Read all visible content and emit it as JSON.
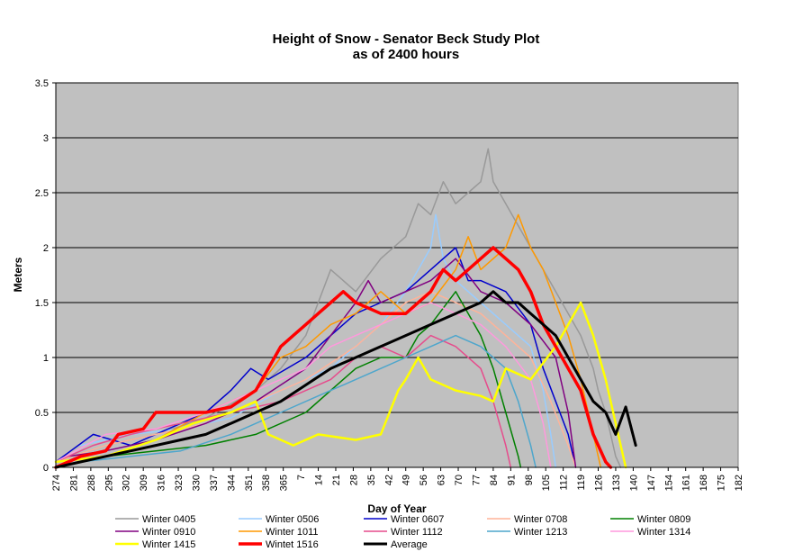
{
  "chart_data": {
    "type": "line",
    "title": "Height of Snow - Senator Beck Study Plot",
    "subtitle": "as of 2400 hours",
    "xlabel": "Day of Year",
    "ylabel": "Meters",
    "ylim": [
      0,
      3.5
    ],
    "yticks": [
      "0",
      "0.5",
      "1",
      "1.5",
      "2",
      "2.5",
      "3",
      "3.5"
    ],
    "xticks": [
      "274",
      "281",
      "288",
      "295",
      "302",
      "309",
      "316",
      "323",
      "330",
      "337",
      "344",
      "351",
      "358",
      "365",
      "7",
      "14",
      "21",
      "28",
      "35",
      "42",
      "49",
      "56",
      "63",
      "70",
      "77",
      "84",
      "91",
      "98",
      "105",
      "112",
      "119",
      "126",
      "133",
      "140",
      "147",
      "154",
      "161",
      "168",
      "175",
      "182"
    ],
    "grid": true,
    "legend_position": "bottom",
    "x_note": "x = season day index, 0 = day 274",
    "series": [
      {
        "name": "Winter 0405",
        "color": "#999999",
        "width": 1.5,
        "points": [
          [
            0,
            0.05
          ],
          [
            20,
            0.2
          ],
          [
            40,
            0.3
          ],
          [
            60,
            0.45
          ],
          [
            80,
            0.7
          ],
          [
            90,
            0.9
          ],
          [
            100,
            1.2
          ],
          [
            105,
            1.5
          ],
          [
            110,
            1.8
          ],
          [
            115,
            1.7
          ],
          [
            120,
            1.6
          ],
          [
            130,
            1.9
          ],
          [
            140,
            2.1
          ],
          [
            145,
            2.4
          ],
          [
            150,
            2.3
          ],
          [
            155,
            2.6
          ],
          [
            160,
            2.4
          ],
          [
            165,
            2.5
          ],
          [
            170,
            2.6
          ],
          [
            173,
            2.9
          ],
          [
            175,
            2.6
          ],
          [
            180,
            2.4
          ],
          [
            185,
            2.2
          ],
          [
            190,
            2.0
          ],
          [
            195,
            1.8
          ],
          [
            200,
            1.6
          ],
          [
            205,
            1.4
          ],
          [
            210,
            1.2
          ],
          [
            215,
            0.9
          ],
          [
            217,
            0.7
          ],
          [
            220,
            0.5
          ],
          [
            224,
            0.1
          ],
          [
            226,
            0
          ]
        ]
      },
      {
        "name": "Winter 0506",
        "color": "#99ccff",
        "width": 1.5,
        "points": [
          [
            10,
            0.2
          ],
          [
            30,
            0.3
          ],
          [
            50,
            0.35
          ],
          [
            70,
            0.45
          ],
          [
            90,
            0.7
          ],
          [
            110,
            0.9
          ],
          [
            120,
            1.1
          ],
          [
            130,
            1.3
          ],
          [
            140,
            1.6
          ],
          [
            145,
            1.8
          ],
          [
            150,
            2.0
          ],
          [
            152,
            2.3
          ],
          [
            155,
            1.9
          ],
          [
            160,
            1.7
          ],
          [
            170,
            1.5
          ],
          [
            180,
            1.3
          ],
          [
            190,
            1.1
          ],
          [
            195,
            0.7
          ],
          [
            198,
            0.3
          ],
          [
            200,
            0
          ]
        ]
      },
      {
        "name": "Winter 0607",
        "color": "#0000cc",
        "width": 1.5,
        "points": [
          [
            0,
            0.05
          ],
          [
            15,
            0.3
          ],
          [
            30,
            0.2
          ],
          [
            50,
            0.4
          ],
          [
            60,
            0.5
          ],
          [
            70,
            0.7
          ],
          [
            78,
            0.9
          ],
          [
            85,
            0.8
          ],
          [
            100,
            1.0
          ],
          [
            110,
            1.2
          ],
          [
            120,
            1.4
          ],
          [
            130,
            1.5
          ],
          [
            140,
            1.6
          ],
          [
            150,
            1.8
          ],
          [
            160,
            2.0
          ],
          [
            165,
            1.7
          ],
          [
            170,
            1.7
          ],
          [
            180,
            1.6
          ],
          [
            190,
            1.3
          ],
          [
            195,
            0.9
          ],
          [
            200,
            0.6
          ],
          [
            205,
            0.3
          ],
          [
            208,
            0
          ]
        ]
      },
      {
        "name": "Winter 0708",
        "color": "#ffb399",
        "width": 1.5,
        "points": [
          [
            0,
            0.05
          ],
          [
            20,
            0.2
          ],
          [
            40,
            0.3
          ],
          [
            60,
            0.4
          ],
          [
            80,
            0.6
          ],
          [
            100,
            0.8
          ],
          [
            120,
            1.1
          ],
          [
            130,
            1.3
          ],
          [
            140,
            1.5
          ],
          [
            150,
            1.6
          ],
          [
            160,
            1.5
          ],
          [
            170,
            1.4
          ],
          [
            180,
            1.2
          ],
          [
            190,
            1.0
          ],
          [
            198,
            0.6
          ],
          [
            205,
            0.2
          ],
          [
            208,
            0
          ]
        ]
      },
      {
        "name": "Winter 0809",
        "color": "#008000",
        "width": 1.5,
        "points": [
          [
            20,
            0.1
          ],
          [
            40,
            0.15
          ],
          [
            60,
            0.2
          ],
          [
            80,
            0.3
          ],
          [
            100,
            0.5
          ],
          [
            110,
            0.7
          ],
          [
            120,
            0.9
          ],
          [
            130,
            1.0
          ],
          [
            140,
            1.0
          ],
          [
            145,
            1.2
          ],
          [
            150,
            1.3
          ],
          [
            160,
            1.6
          ],
          [
            170,
            1.2
          ],
          [
            175,
            0.9
          ],
          [
            180,
            0.5
          ],
          [
            185,
            0.1
          ],
          [
            186,
            0
          ]
        ]
      },
      {
        "name": "Winter 0910",
        "color": "#800080",
        "width": 1.5,
        "points": [
          [
            5,
            0.1
          ],
          [
            20,
            0.15
          ],
          [
            40,
            0.25
          ],
          [
            60,
            0.4
          ],
          [
            80,
            0.6
          ],
          [
            100,
            0.9
          ],
          [
            110,
            1.2
          ],
          [
            120,
            1.5
          ],
          [
            125,
            1.7
          ],
          [
            130,
            1.5
          ],
          [
            140,
            1.6
          ],
          [
            150,
            1.7
          ],
          [
            160,
            1.9
          ],
          [
            170,
            1.6
          ],
          [
            180,
            1.5
          ],
          [
            190,
            1.3
          ],
          [
            200,
            1.0
          ],
          [
            205,
            0.5
          ],
          [
            208,
            0
          ]
        ]
      },
      {
        "name": "Winter 1011",
        "color": "#ff9900",
        "width": 1.5,
        "points": [
          [
            0,
            0.05
          ],
          [
            20,
            0.1
          ],
          [
            40,
            0.25
          ],
          [
            60,
            0.5
          ],
          [
            80,
            0.7
          ],
          [
            90,
            1.0
          ],
          [
            100,
            1.1
          ],
          [
            110,
            1.3
          ],
          [
            120,
            1.4
          ],
          [
            130,
            1.6
          ],
          [
            140,
            1.4
          ],
          [
            150,
            1.5
          ],
          [
            160,
            1.8
          ],
          [
            165,
            2.1
          ],
          [
            170,
            1.8
          ],
          [
            180,
            2.0
          ],
          [
            185,
            2.3
          ],
          [
            190,
            2.0
          ],
          [
            195,
            1.8
          ],
          [
            200,
            1.5
          ],
          [
            205,
            1.2
          ],
          [
            210,
            0.8
          ],
          [
            215,
            0.3
          ],
          [
            218,
            0
          ]
        ]
      },
      {
        "name": "Winter 1112",
        "color": "#e64c8c",
        "width": 1.5,
        "points": [
          [
            0,
            0.05
          ],
          [
            15,
            0.2
          ],
          [
            30,
            0.3
          ],
          [
            50,
            0.4
          ],
          [
            70,
            0.5
          ],
          [
            90,
            0.6
          ],
          [
            110,
            0.8
          ],
          [
            120,
            1.0
          ],
          [
            130,
            1.1
          ],
          [
            140,
            1.0
          ],
          [
            150,
            1.2
          ],
          [
            160,
            1.1
          ],
          [
            170,
            0.9
          ],
          [
            175,
            0.6
          ],
          [
            180,
            0.2
          ],
          [
            182,
            0
          ]
        ]
      },
      {
        "name": "Winter 1213",
        "color": "#4da6cc",
        "width": 1.5,
        "points": [
          [
            10,
            0.05
          ],
          [
            30,
            0.1
          ],
          [
            50,
            0.15
          ],
          [
            70,
            0.3
          ],
          [
            90,
            0.5
          ],
          [
            110,
            0.7
          ],
          [
            130,
            0.9
          ],
          [
            140,
            1.0
          ],
          [
            150,
            1.1
          ],
          [
            160,
            1.2
          ],
          [
            170,
            1.1
          ],
          [
            180,
            0.9
          ],
          [
            185,
            0.6
          ],
          [
            190,
            0.2
          ],
          [
            192,
            0
          ]
        ]
      },
      {
        "name": "Winter 1314",
        "color": "#ff99dd",
        "width": 1.5,
        "points": [
          [
            0,
            0.05
          ],
          [
            20,
            0.3
          ],
          [
            40,
            0.35
          ],
          [
            60,
            0.5
          ],
          [
            80,
            0.7
          ],
          [
            100,
            0.9
          ],
          [
            110,
            1.1
          ],
          [
            120,
            1.2
          ],
          [
            130,
            1.3
          ],
          [
            140,
            1.4
          ],
          [
            150,
            1.5
          ],
          [
            160,
            1.4
          ],
          [
            170,
            1.3
          ],
          [
            180,
            1.1
          ],
          [
            190,
            0.8
          ],
          [
            195,
            0.4
          ],
          [
            198,
            0
          ]
        ]
      },
      {
        "name": "Winter 1415",
        "color": "#ffff00",
        "width": 2.5,
        "points": [
          [
            0,
            0.05
          ],
          [
            20,
            0.1
          ],
          [
            40,
            0.25
          ],
          [
            55,
            0.4
          ],
          [
            70,
            0.5
          ],
          [
            80,
            0.6
          ],
          [
            85,
            0.3
          ],
          [
            95,
            0.2
          ],
          [
            105,
            0.3
          ],
          [
            120,
            0.25
          ],
          [
            130,
            0.3
          ],
          [
            137,
            0.7
          ],
          [
            140,
            0.8
          ],
          [
            145,
            1.0
          ],
          [
            150,
            0.8
          ],
          [
            160,
            0.7
          ],
          [
            170,
            0.65
          ],
          [
            175,
            0.6
          ],
          [
            180,
            0.9
          ],
          [
            190,
            0.8
          ],
          [
            200,
            1.1
          ],
          [
            205,
            1.3
          ],
          [
            210,
            1.5
          ],
          [
            215,
            1.2
          ],
          [
            220,
            0.8
          ],
          [
            225,
            0.3
          ],
          [
            228,
            0
          ]
        ]
      },
      {
        "name": "Wintet 1516",
        "color": "#ff0000",
        "width": 3.5,
        "points": [
          [
            0,
            0.0
          ],
          [
            10,
            0.1
          ],
          [
            20,
            0.15
          ],
          [
            25,
            0.3
          ],
          [
            35,
            0.35
          ],
          [
            40,
            0.5
          ],
          [
            50,
            0.5
          ],
          [
            60,
            0.5
          ],
          [
            70,
            0.55
          ],
          [
            80,
            0.7
          ],
          [
            85,
            0.9
          ],
          [
            90,
            1.1
          ],
          [
            95,
            1.2
          ],
          [
            100,
            1.3
          ],
          [
            105,
            1.4
          ],
          [
            110,
            1.5
          ],
          [
            115,
            1.6
          ],
          [
            120,
            1.5
          ],
          [
            130,
            1.4
          ],
          [
            140,
            1.4
          ],
          [
            150,
            1.6
          ],
          [
            155,
            1.8
          ],
          [
            160,
            1.7
          ],
          [
            165,
            1.8
          ],
          [
            170,
            1.9
          ],
          [
            175,
            2.0
          ],
          [
            180,
            1.9
          ],
          [
            185,
            1.8
          ],
          [
            190,
            1.6
          ],
          [
            195,
            1.3
          ],
          [
            200,
            1.1
          ],
          [
            205,
            0.9
          ],
          [
            210,
            0.7
          ],
          [
            215,
            0.3
          ],
          [
            220,
            0.05
          ],
          [
            222,
            0
          ]
        ]
      },
      {
        "name": "Average",
        "color": "#000000",
        "width": 3,
        "points": [
          [
            0,
            0.0
          ],
          [
            10,
            0.05
          ],
          [
            20,
            0.1
          ],
          [
            30,
            0.15
          ],
          [
            40,
            0.2
          ],
          [
            50,
            0.25
          ],
          [
            60,
            0.3
          ],
          [
            70,
            0.4
          ],
          [
            80,
            0.5
          ],
          [
            90,
            0.6
          ],
          [
            100,
            0.75
          ],
          [
            110,
            0.9
          ],
          [
            120,
            1.0
          ],
          [
            130,
            1.1
          ],
          [
            140,
            1.2
          ],
          [
            150,
            1.3
          ],
          [
            160,
            1.4
          ],
          [
            170,
            1.5
          ],
          [
            175,
            1.6
          ],
          [
            180,
            1.5
          ],
          [
            185,
            1.5
          ],
          [
            190,
            1.4
          ],
          [
            195,
            1.3
          ],
          [
            200,
            1.2
          ],
          [
            205,
            1.0
          ],
          [
            210,
            0.8
          ],
          [
            215,
            0.6
          ],
          [
            220,
            0.5
          ],
          [
            224,
            0.3
          ],
          [
            228,
            0.55
          ],
          [
            232,
            0.2
          ]
        ]
      }
    ]
  }
}
